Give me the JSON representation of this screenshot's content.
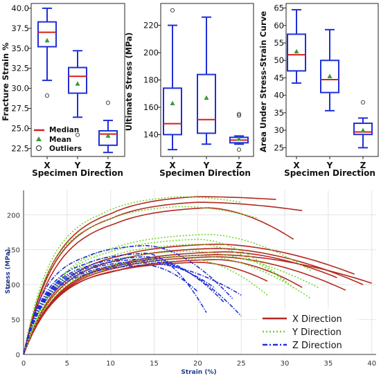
{
  "chart_data": [
    {
      "type": "box",
      "ylabel": "Fracture Strain %",
      "xlabel": "Specimen Direction",
      "categories": [
        "X",
        "Y",
        "Z"
      ],
      "ylim": [
        21.5,
        40.6
      ],
      "yticks": [
        "22.5",
        "25.0",
        "27.5",
        "30.0",
        "32.5",
        "35.0",
        "37.5",
        "40.0"
      ],
      "boxes": [
        {
          "min": 31.0,
          "q1": 35.2,
          "median": 37.0,
          "q3": 38.3,
          "max": 40.0,
          "mean": 36.0,
          "outliers": [
            29.1
          ]
        },
        {
          "min": 26.4,
          "q1": 29.4,
          "median": 31.5,
          "q3": 32.6,
          "max": 34.7,
          "mean": 30.6,
          "outliers": [
            24.2
          ]
        },
        {
          "min": 22.0,
          "q1": 22.9,
          "median": 24.3,
          "q3": 24.7,
          "max": 26.0,
          "mean": 24.1,
          "outliers": [
            28.2
          ]
        }
      ],
      "legend": [
        "Median",
        "Mean",
        "Outliers"
      ]
    },
    {
      "type": "box",
      "ylabel": "Ultimate Stress (MPa)",
      "xlabel": "Specimen Direction",
      "categories": [
        "X",
        "Y",
        "Z"
      ],
      "ylim": [
        124,
        236
      ],
      "yticks": [
        "140",
        "160",
        "180",
        "200",
        "220"
      ],
      "boxes": [
        {
          "min": 129,
          "q1": 140,
          "median": 148,
          "q3": 174,
          "max": 220,
          "mean": 163,
          "outliers": [
            231
          ]
        },
        {
          "min": 133,
          "q1": 141,
          "median": 151,
          "q3": 184,
          "max": 226,
          "mean": 167,
          "outliers": []
        },
        {
          "min": 133,
          "q1": 134,
          "median": 136,
          "q3": 138,
          "max": 139,
          "mean": 137,
          "outliers": [
            155,
            154,
            129
          ]
        }
      ]
    },
    {
      "type": "box",
      "ylabel": "Area Under Stress-Strain Curve",
      "xlabel": "Specimen Direction",
      "categories": [
        "X",
        "Y",
        "Z"
      ],
      "ylim": [
        22.5,
        66.3
      ],
      "yticks": [
        "25",
        "30",
        "35",
        "40",
        "45",
        "50",
        "55",
        "60",
        "65"
      ],
      "boxes": [
        {
          "min": 43.5,
          "q1": 47.0,
          "median": 51.6,
          "q3": 57.5,
          "max": 64.5,
          "mean": 52.6,
          "outliers": []
        },
        {
          "min": 35.6,
          "q1": 40.8,
          "median": 44.5,
          "q3": 50.0,
          "max": 58.8,
          "mean": 45.5,
          "outliers": []
        },
        {
          "min": 25.0,
          "q1": 28.8,
          "median": 29.5,
          "q3": 32.0,
          "max": 33.5,
          "mean": 30.0,
          "outliers": [
            38.0
          ]
        }
      ]
    },
    {
      "type": "line",
      "xlabel": "Strain (%)",
      "ylabel": "Stress (MPa)",
      "xlim": [
        0,
        40.5
      ],
      "ylim": [
        0,
        235
      ],
      "xticks": [
        "0",
        "5",
        "10",
        "15",
        "20",
        "25",
        "30",
        "35",
        "40"
      ],
      "yticks": [
        "0",
        "50",
        "100",
        "150",
        "200"
      ],
      "legend": [
        "X Direction",
        "Y Direction",
        "Z Direction"
      ],
      "series": [
        {
          "group": "X",
          "peak": 226,
          "peak_strain": 20,
          "end_strain": 29,
          "end_stress": 222
        },
        {
          "group": "X",
          "peak": 218,
          "peak_strain": 20,
          "end_strain": 32,
          "end_stress": 206
        },
        {
          "group": "X",
          "peak": 210,
          "peak_strain": 21,
          "end_strain": 31,
          "end_stress": 165
        },
        {
          "group": "X",
          "peak": 158,
          "peak_strain": 22,
          "end_strain": 38,
          "end_stress": 115
        },
        {
          "group": "X",
          "peak": 152,
          "peak_strain": 22,
          "end_strain": 39,
          "end_stress": 100
        },
        {
          "group": "X",
          "peak": 147,
          "peak_strain": 23,
          "end_strain": 36,
          "end_stress": 110
        },
        {
          "group": "X",
          "peak": 143,
          "peak_strain": 22,
          "end_strain": 40,
          "end_stress": 102
        },
        {
          "group": "X",
          "peak": 140,
          "peak_strain": 22,
          "end_strain": 37,
          "end_stress": 92
        },
        {
          "group": "X",
          "peak": 136,
          "peak_strain": 22,
          "end_strain": 32,
          "end_stress": 96
        },
        {
          "group": "X",
          "peak": 132,
          "peak_strain": 20,
          "end_strain": 28,
          "end_stress": 105
        },
        {
          "group": "Y",
          "peak": 226,
          "peak_strain": 18,
          "end_strain": 25,
          "end_stress": 218
        },
        {
          "group": "Y",
          "peak": 212,
          "peak_strain": 18,
          "end_strain": 27,
          "end_stress": 195
        },
        {
          "group": "Y",
          "peak": 172,
          "peak_strain": 21,
          "end_strain": 33,
          "end_stress": 120
        },
        {
          "group": "Y",
          "peak": 165,
          "peak_strain": 20,
          "end_strain": 31,
          "end_stress": 95
        },
        {
          "group": "Y",
          "peak": 158,
          "peak_strain": 20,
          "end_strain": 30,
          "end_stress": 105
        },
        {
          "group": "Y",
          "peak": 148,
          "peak_strain": 19,
          "end_strain": 34,
          "end_stress": 95
        },
        {
          "group": "Y",
          "peak": 142,
          "peak_strain": 20,
          "end_strain": 33,
          "end_stress": 80
        },
        {
          "group": "Y",
          "peak": 137,
          "peak_strain": 19,
          "end_strain": 28,
          "end_stress": 85
        },
        {
          "group": "Z",
          "peak": 156,
          "peak_strain": 14,
          "end_strain": 24,
          "end_stress": 80
        },
        {
          "group": "Z",
          "peak": 145,
          "peak_strain": 14,
          "end_strain": 21,
          "end_stress": 60
        },
        {
          "group": "Z",
          "peak": 140,
          "peak_strain": 14,
          "end_strain": 23,
          "end_stress": 75
        },
        {
          "group": "Z",
          "peak": 137,
          "peak_strain": 14,
          "end_strain": 25,
          "end_stress": 55
        },
        {
          "group": "Z",
          "peak": 134,
          "peak_strain": 14,
          "end_strain": 22,
          "end_stress": 95
        },
        {
          "group": "Z",
          "peak": 131,
          "peak_strain": 14,
          "end_strain": 25,
          "end_stress": 85
        },
        {
          "group": "Z",
          "peak": 128,
          "peak_strain": 14,
          "end_strain": 20,
          "end_stress": 90
        }
      ]
    }
  ],
  "colors": {
    "box": "#1f2fd6",
    "median": "#d21f1f",
    "mean": "#3a9a3a",
    "x_line": "#b5281f",
    "y_line": "#6fd62a",
    "z_line": "#1f2fd6"
  }
}
